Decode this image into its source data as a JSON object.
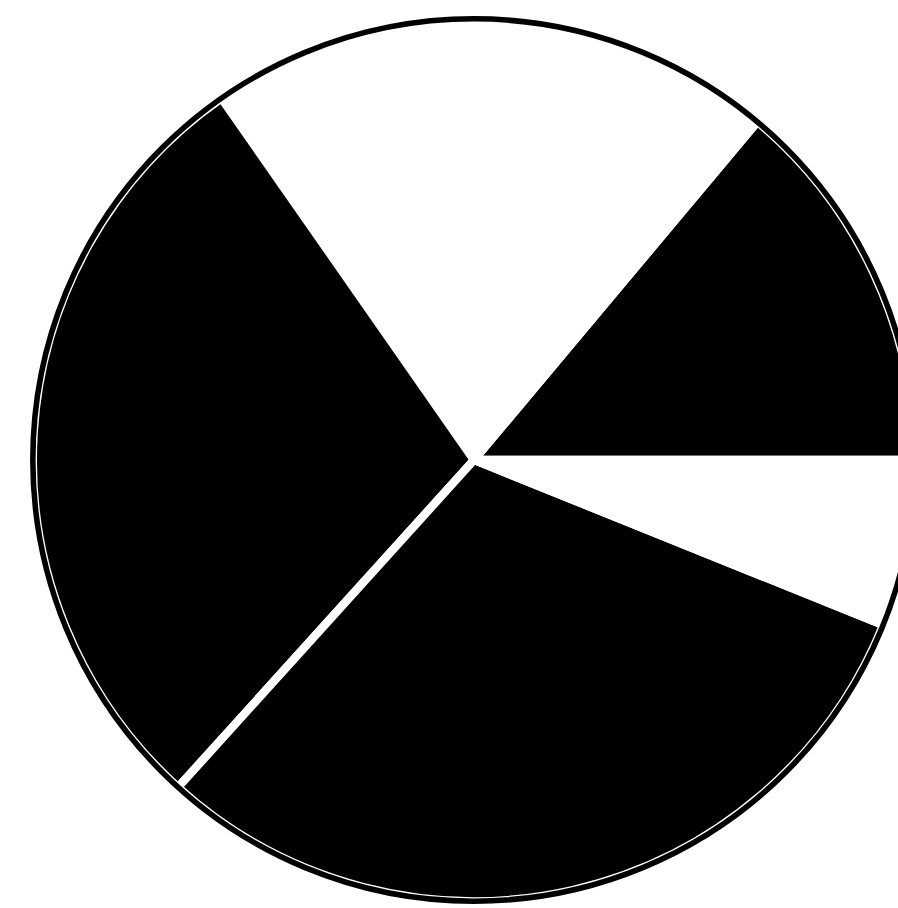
{
  "chart_data": {
    "type": "pie",
    "categories": [
      null,
      null,
      null,
      null,
      null
    ],
    "values": [
      13.9,
      20.8,
      28.6,
      30.6,
      6.1
    ],
    "colors": [
      "#000000",
      "#ffffff",
      "#000000",
      "#000000",
      "#ffffff"
    ]
  }
}
